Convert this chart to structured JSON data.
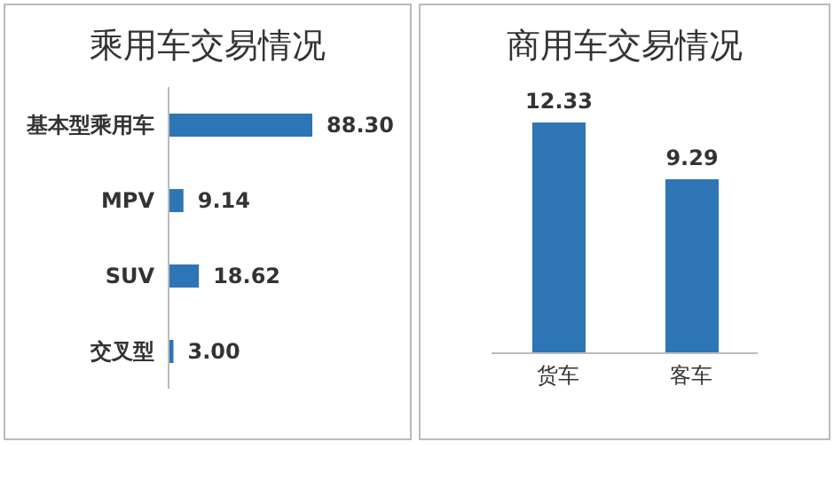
{
  "chart_data": [
    {
      "type": "bar",
      "title": "乘用车交易情况",
      "orientation": "horizontal",
      "categories": [
        "基本型乘用车",
        "MPV",
        "SUV",
        "交叉型"
      ],
      "values": [
        88.3,
        9.14,
        18.62,
        3.0
      ],
      "value_labels": [
        "88.30",
        "9.14",
        "18.62",
        "3.00"
      ],
      "color": "#2e75b6"
    },
    {
      "type": "bar",
      "title": "商用车交易情况",
      "categories": [
        "货车",
        "客车"
      ],
      "values": [
        12.33,
        9.29
      ],
      "value_labels": [
        "12.33",
        "9.29"
      ],
      "color": "#2e75b6"
    }
  ]
}
